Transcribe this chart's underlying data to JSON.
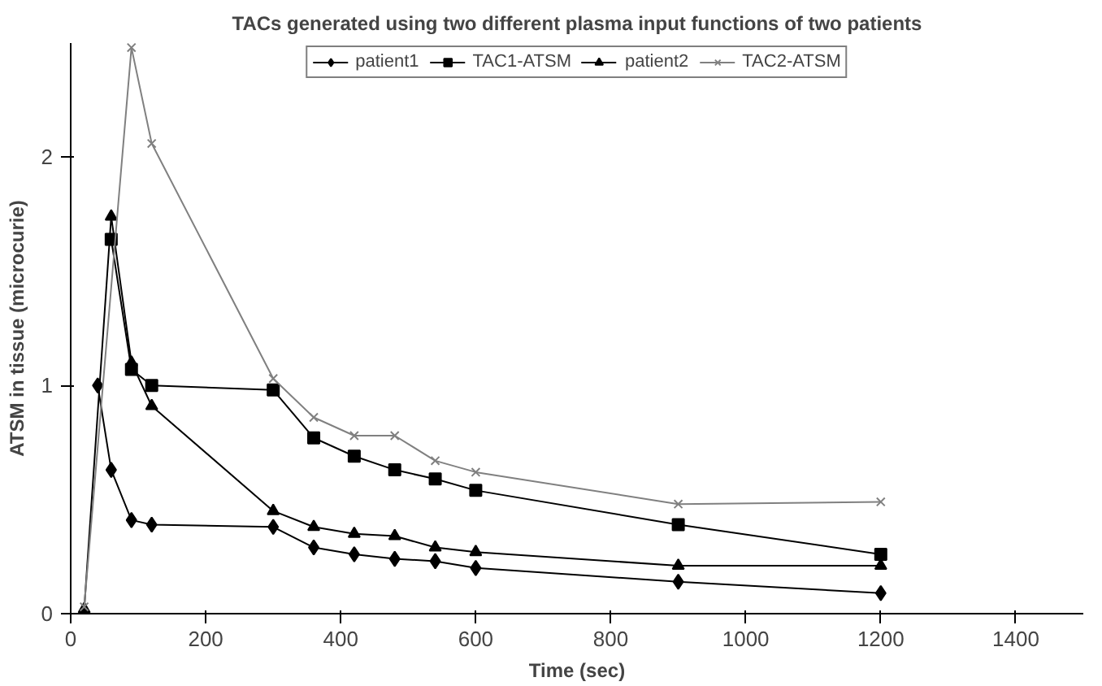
{
  "chart_data": {
    "type": "line",
    "title": "TACs generated using two different plasma input functions of two patients",
    "xlabel": "Time (sec)",
    "ylabel": "ATSM in tissue (microcurie)",
    "xlim": [
      0,
      1500
    ],
    "ylim": [
      0,
      2.5
    ],
    "xticks": [
      0,
      200,
      400,
      600,
      800,
      1000,
      1200,
      1400
    ],
    "yticks": [
      0,
      1,
      2
    ],
    "grid": false,
    "legend": "top",
    "series": [
      {
        "name": "patient1",
        "color": "#000000",
        "marker": "diamond",
        "x": [
          40,
          60,
          90,
          120,
          300,
          360,
          420,
          480,
          540,
          600,
          900,
          1200
        ],
        "values": [
          1.0,
          0.63,
          0.41,
          0.39,
          0.38,
          0.29,
          0.26,
          0.24,
          0.23,
          0.2,
          0.14,
          0.09
        ]
      },
      {
        "name": "TAC1-ATSM",
        "color": "#000000",
        "marker": "square",
        "x": [
          60,
          90,
          120,
          300,
          360,
          420,
          480,
          540,
          600,
          900,
          1200
        ],
        "values": [
          1.64,
          1.07,
          1.0,
          0.98,
          0.77,
          0.69,
          0.63,
          0.59,
          0.54,
          0.39,
          0.26
        ]
      },
      {
        "name": "patient2",
        "color": "#000000",
        "marker": "triangle",
        "x": [
          20,
          60,
          90,
          120,
          300,
          360,
          420,
          480,
          540,
          600,
          900,
          1200
        ],
        "values": [
          0.02,
          1.74,
          1.1,
          0.91,
          0.45,
          0.38,
          0.35,
          0.34,
          0.29,
          0.27,
          0.21,
          0.21
        ]
      },
      {
        "name": "TAC2-ATSM",
        "color": "#808080",
        "marker": "cross",
        "x": [
          20,
          90,
          120,
          300,
          360,
          420,
          480,
          540,
          600,
          900,
          1200
        ],
        "values": [
          0.03,
          2.48,
          2.06,
          1.03,
          0.86,
          0.78,
          0.78,
          0.67,
          0.62,
          0.48,
          0.49
        ]
      }
    ]
  }
}
